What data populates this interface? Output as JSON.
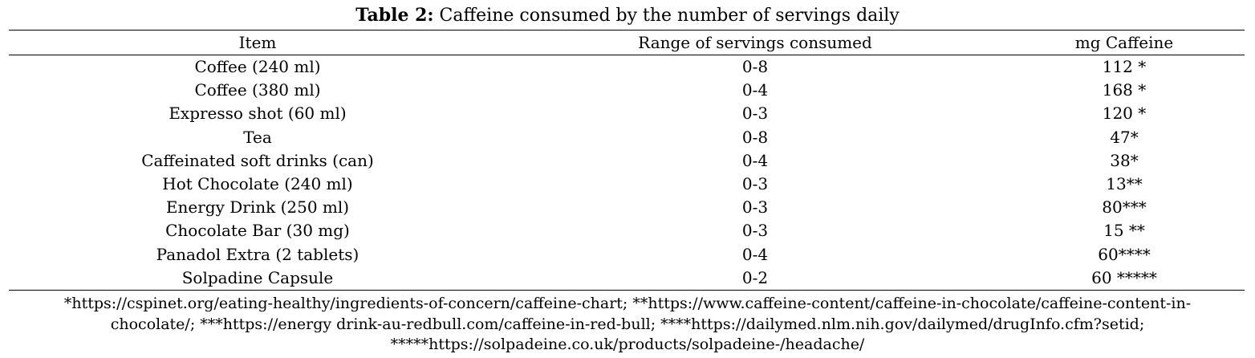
{
  "caption": {
    "label": "Table 2:",
    "text": " Caffeine consumed by the number of servings daily"
  },
  "table": {
    "headers": [
      "Item",
      "Range of servings consumed",
      "mg Caffeine"
    ],
    "rows": [
      [
        "Coffee (240 ml)",
        "0-8",
        "112 *"
      ],
      [
        "Coffee (380 ml)",
        "0-4",
        "168 *"
      ],
      [
        "Expresso shot (60 ml)",
        "0-3",
        "120 *"
      ],
      [
        "Tea",
        "0-8",
        "47*"
      ],
      [
        "Caffeinated soft drinks (can)",
        "0-4",
        "38*"
      ],
      [
        "Hot Chocolate (240 ml)",
        "0-3",
        "13**"
      ],
      [
        "Energy Drink (250 ml)",
        "0-3",
        "80***"
      ],
      [
        "Chocolate Bar (30 mg)",
        "0-3",
        "15 **"
      ],
      [
        "Panadol Extra (2 tablets)",
        "0-4",
        "60****"
      ],
      [
        "Solpadine Capsule",
        "0-2",
        "60 *****"
      ]
    ]
  },
  "notes": {
    "text": "*https://cspinet.org/eating-healthy/ingredients-of-concern/caffeine-chart; **https://www.caffeine-content/caffeine-in-chocolate/caffeine-content-in-chocolate/; ***https://energy drink-au-redbull.com/caffeine-in-red-bull; ****https://dailymed.nlm.nih.gov/dailymed/drugInfo.cfm?setid; *****https://solpadeine.co.uk/products/solpadeine-/headache/"
  }
}
